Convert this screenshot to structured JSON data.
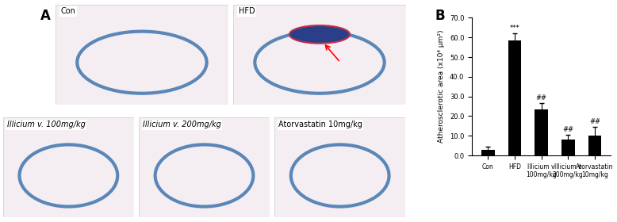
{
  "panel_a": {
    "label": "A",
    "images": [
      "Con",
      "HFD",
      "Illicium v. 100mg/kg",
      "Illicium v. 200mg/kg",
      "Atorvastatin 10mg/kg"
    ]
  },
  "chart_data": {
    "type": "bar",
    "panel_label": "B",
    "y_label": "Atherosclerotic area (x10⁴ μm²)",
    "categories": [
      "Con",
      "HFD",
      "Illicium v\n100mg/kg",
      "Illicium v\n200mg/kg",
      "Atorvastatin\n10mg/kg"
    ],
    "values": [
      3.0,
      58.5,
      23.5,
      8.0,
      10.0
    ],
    "errors": [
      1.5,
      3.5,
      3.0,
      2.5,
      4.5
    ],
    "annotations": [
      null,
      "***",
      "##",
      "##",
      "##"
    ],
    "color": "#000000",
    "ylim": [
      0,
      70
    ],
    "yticks": [
      {
        "value": 0,
        "label": "0.0"
      },
      {
        "value": 10,
        "label": "10.0"
      },
      {
        "value": 20,
        "label": "20.0"
      },
      {
        "value": 30,
        "label": "30.0"
      },
      {
        "value": 40,
        "label": "40.0"
      },
      {
        "value": 50,
        "label": "50.0"
      },
      {
        "value": 60,
        "label": "60.0"
      },
      {
        "value": 70,
        "label": "70.0"
      }
    ],
    "grid": false
  }
}
